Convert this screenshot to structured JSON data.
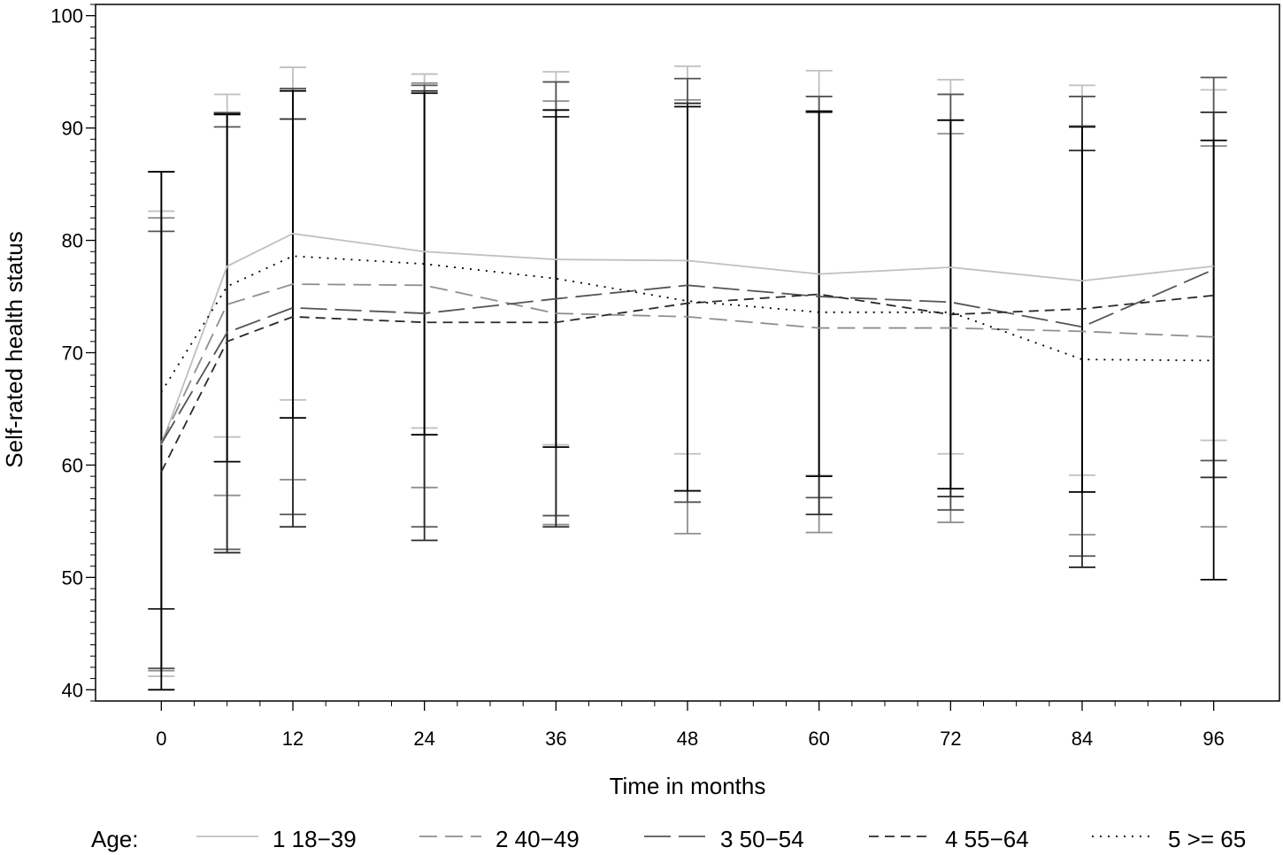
{
  "chart_data": {
    "type": "line",
    "xlabel": "Time in months",
    "ylabel": "Self-rated health status",
    "xlim": [
      -6,
      102
    ],
    "ylim": [
      39,
      101
    ],
    "x_ticks": [
      0,
      12,
      24,
      36,
      48,
      60,
      72,
      84,
      96
    ],
    "x_minor_step": 3,
    "y_ticks": [
      40,
      50,
      60,
      70,
      80,
      90,
      100
    ],
    "x": [
      0,
      6,
      12,
      24,
      36,
      48,
      60,
      72,
      84,
      96
    ],
    "legend": {
      "title": "Age:",
      "placement": "bottom"
    },
    "series": [
      {
        "name": "1 18−39",
        "color": "#c0c0c0",
        "dash": "solid",
        "values": [
          61.8,
          77.7,
          80.6,
          79.0,
          78.3,
          78.2,
          77.0,
          77.6,
          76.4,
          77.7
        ],
        "ci_upper": [
          82.6,
          93.0,
          95.4,
          94.8,
          95.0,
          95.5,
          95.1,
          94.3,
          93.8,
          93.4
        ],
        "ci_lower": [
          41.2,
          62.5,
          65.8,
          63.3,
          61.8,
          61.0,
          59.1,
          61.0,
          59.1,
          62.2
        ]
      },
      {
        "name": "2 40−49",
        "color": "#8f8f8f",
        "dash": "dashed",
        "values": [
          62.0,
          74.3,
          76.1,
          76.0,
          73.5,
          73.2,
          72.2,
          72.2,
          71.9,
          71.4
        ],
        "ci_upper": [
          82.0,
          91.4,
          93.5,
          94.0,
          92.4,
          92.5,
          91.5,
          89.5,
          90.2,
          88.4
        ],
        "ci_lower": [
          41.7,
          57.3,
          58.7,
          58.0,
          54.7,
          53.9,
          54.0,
          54.9,
          53.8,
          54.5
        ]
      },
      {
        "name": "3 50−54",
        "color": "#555555",
        "dash": "longdash",
        "values": [
          61.9,
          71.8,
          74.0,
          73.5,
          74.8,
          76.0,
          75.0,
          74.5,
          72.3,
          77.4
        ],
        "ci_upper": [
          80.8,
          90.1,
          93.5,
          93.8,
          94.1,
          94.4,
          92.8,
          93.0,
          92.8,
          94.5
        ],
        "ci_lower": [
          41.9,
          52.5,
          55.6,
          54.5,
          55.5,
          56.7,
          57.1,
          56.0,
          51.9,
          60.4
        ]
      },
      {
        "name": "4 55−64",
        "color": "#2a2a2a",
        "dash": "shortdash",
        "values": [
          59.4,
          71.0,
          73.2,
          72.7,
          72.7,
          74.4,
          75.2,
          73.4,
          73.9,
          75.1
        ],
        "ci_upper": [
          86.1,
          91.3,
          90.8,
          93.3,
          91.0,
          92.2,
          91.4,
          90.7,
          88.0,
          91.4
        ],
        "ci_lower": [
          47.2,
          52.2,
          54.5,
          53.3,
          54.5,
          57.7,
          55.6,
          57.2,
          50.9,
          58.9
        ]
      },
      {
        "name": "5 >=  65",
        "color": "#000000",
        "dash": "dotted",
        "values": [
          66.5,
          75.9,
          78.6,
          77.9,
          76.6,
          74.6,
          73.6,
          73.6,
          69.4,
          69.3
        ],
        "ci_upper": [
          86.1,
          91.2,
          93.3,
          93.1,
          91.6,
          91.9,
          91.5,
          90.7,
          90.1,
          88.9
        ],
        "ci_lower": [
          40.0,
          60.3,
          64.2,
          62.7,
          61.6,
          57.7,
          59.0,
          57.9,
          57.6,
          49.8
        ]
      }
    ]
  }
}
